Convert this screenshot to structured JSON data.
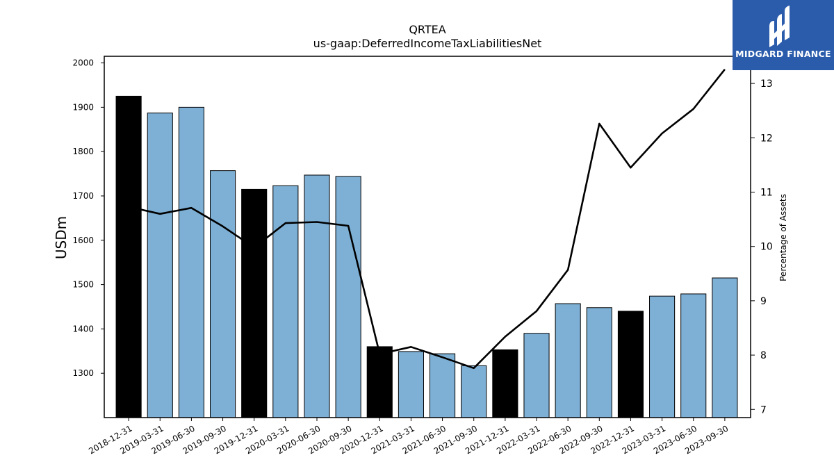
{
  "brand": {
    "name": "MIDGARD FINANCE",
    "logo_icon": "midgard-logo-icon",
    "background": "#2b5cac"
  },
  "chart_data": {
    "type": "bar",
    "title": "QRTEA",
    "subtitle": "us-gaap:DeferredIncomeTaxLiabilitiesNet",
    "ylabel": "USDm",
    "y2label": "Percentage of Assets",
    "ylim": [
      1200,
      2015
    ],
    "y2lim": [
      6.85,
      13.5
    ],
    "yticks": [
      1300,
      1400,
      1500,
      1600,
      1700,
      1800,
      1900,
      2000
    ],
    "y2ticks": [
      7,
      8,
      9,
      10,
      11,
      12,
      13
    ],
    "categories": [
      "2018-12-31",
      "2019-03-31",
      "2019-06-30",
      "2019-09-30",
      "2019-12-31",
      "2020-03-31",
      "2020-06-30",
      "2020-09-30",
      "2020-12-31",
      "2021-03-31",
      "2021-06-30",
      "2021-09-30",
      "2021-12-31",
      "2022-03-31",
      "2022-06-30",
      "2022-09-30",
      "2022-12-31",
      "2023-03-31",
      "2023-06-30",
      "2023-09-30"
    ],
    "series": [
      {
        "kind": "bar",
        "axis": "left",
        "values": [
          1925,
          1887,
          1900,
          1757,
          1715,
          1723,
          1747,
          1744,
          1360,
          1349,
          1344,
          1317,
          1353,
          1390,
          1457,
          1448,
          1440,
          1474,
          1479,
          1515
        ],
        "highlight_indices": [
          0,
          4,
          8,
          12,
          16
        ],
        "color": "#7eb0d5",
        "highlight_color": "#000000"
      },
      {
        "kind": "line",
        "axis": "right",
        "values": [
          10.73,
          10.6,
          10.71,
          10.37,
          9.98,
          10.43,
          10.45,
          10.38,
          8.02,
          8.15,
          7.96,
          7.76,
          8.34,
          8.81,
          9.57,
          12.26,
          11.45,
          12.08,
          12.53,
          13.26
        ],
        "color": "#000000"
      }
    ]
  }
}
